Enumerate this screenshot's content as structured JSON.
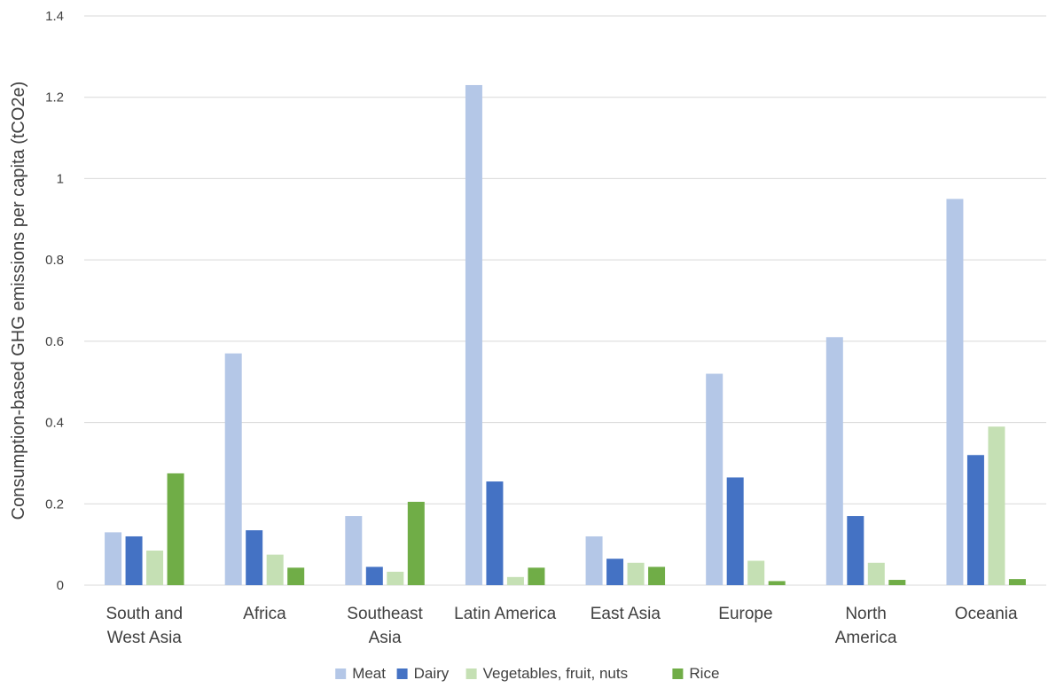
{
  "chart_data": {
    "type": "bar",
    "title": "",
    "xlabel": "",
    "ylabel": "Consumption-based GHG emissions per capita (tCO2e)",
    "ylim": [
      0,
      1.4
    ],
    "yticks": [
      {
        "value": 0,
        "label": "0"
      },
      {
        "value": 0.2,
        "label": "0.2"
      },
      {
        "value": 0.4,
        "label": "0.4"
      },
      {
        "value": 0.6,
        "label": "0.6"
      },
      {
        "value": 0.8,
        "label": "0.8"
      },
      {
        "value": 1,
        "label": "1"
      },
      {
        "value": 1.2,
        "label": "1.2"
      },
      {
        "value": 1.4,
        "label": "1.4"
      }
    ],
    "grid": true,
    "legend_position": "bottom",
    "categories": [
      {
        "name": "South and West Asia",
        "lines": [
          "South and",
          "West Asia"
        ]
      },
      {
        "name": "Africa",
        "lines": [
          "Africa"
        ]
      },
      {
        "name": "Southeast Asia",
        "lines": [
          "Southeast",
          "Asia"
        ]
      },
      {
        "name": "Latin America",
        "lines": [
          "Latin America"
        ]
      },
      {
        "name": "East Asia",
        "lines": [
          "East Asia"
        ]
      },
      {
        "name": "Europe",
        "lines": [
          "Europe"
        ]
      },
      {
        "name": "North America",
        "lines": [
          "North",
          "America"
        ]
      },
      {
        "name": "Oceania",
        "lines": [
          "Oceania"
        ]
      }
    ],
    "series": [
      {
        "name": "Meat",
        "color": "#b4c7e7",
        "values": [
          0.13,
          0.57,
          0.17,
          1.23,
          0.12,
          0.52,
          0.61,
          0.95
        ]
      },
      {
        "name": "Dairy",
        "color": "#4472c4",
        "values": [
          0.12,
          0.135,
          0.045,
          0.255,
          0.065,
          0.265,
          0.17,
          0.32
        ]
      },
      {
        "name": "Vegetables, fruit, nuts",
        "color": "#c5e0b4",
        "values": [
          0.085,
          0.075,
          0.033,
          0.02,
          0.055,
          0.06,
          0.055,
          0.39
        ]
      },
      {
        "name": "Rice",
        "color": "#70ad47",
        "values": [
          0.275,
          0.043,
          0.205,
          0.043,
          0.045,
          0.01,
          0.013,
          0.015
        ]
      }
    ]
  }
}
